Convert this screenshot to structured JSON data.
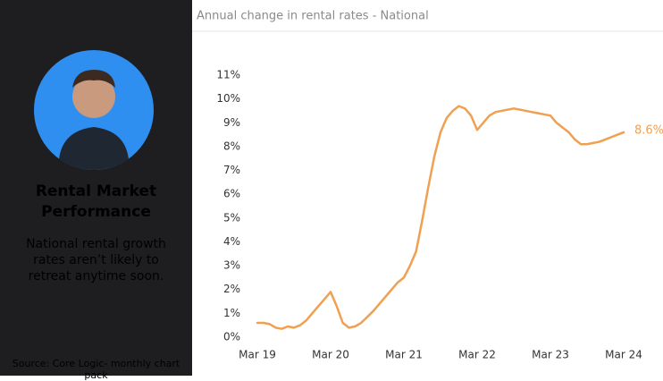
{
  "panel": {
    "heading": "Rental Market Performance",
    "text": "National rental growth rates aren’t likely to retreat anytime soon.",
    "source": "Source: Core Logic- monthly chart pack"
  },
  "chart_data": {
    "type": "line",
    "title": "Annual change in rental rates - National",
    "categories": [
      "Mar 19",
      null,
      null,
      null,
      null,
      null,
      null,
      null,
      null,
      null,
      null,
      null,
      "Mar 20",
      null,
      null,
      null,
      null,
      null,
      null,
      null,
      null,
      null,
      null,
      null,
      "Mar 21",
      null,
      null,
      null,
      null,
      null,
      null,
      null,
      null,
      null,
      null,
      null,
      "Mar 22",
      null,
      null,
      null,
      null,
      null,
      null,
      null,
      null,
      null,
      null,
      null,
      "Mar 23",
      null,
      null,
      null,
      null,
      null,
      null,
      null,
      null,
      null,
      null,
      null,
      "Mar 24"
    ],
    "series": [
      {
        "name": "National",
        "color": "#f0a050",
        "values": [
          0.6,
          0.6,
          0.55,
          0.4,
          0.35,
          0.45,
          0.4,
          0.5,
          0.7,
          1.0,
          1.3,
          1.6,
          1.9,
          1.3,
          0.6,
          0.4,
          0.45,
          0.6,
          0.85,
          1.1,
          1.4,
          1.7,
          2.0,
          2.3,
          2.5,
          3.0,
          3.6,
          4.9,
          6.3,
          7.6,
          8.6,
          9.2,
          9.5,
          9.7,
          9.6,
          9.3,
          8.7,
          9.0,
          9.3,
          9.45,
          9.5,
          9.55,
          9.6,
          9.55,
          9.5,
          9.45,
          9.4,
          9.35,
          9.3,
          9.0,
          8.8,
          8.6,
          8.3,
          8.1,
          8.1,
          8.15,
          8.2,
          8.3,
          8.4,
          8.5,
          8.6
        ],
        "value_labels": [
          null,
          null,
          null,
          null,
          null,
          null,
          null,
          null,
          null,
          null,
          null,
          null,
          null,
          null,
          null,
          null,
          null,
          null,
          null,
          null,
          null,
          null,
          null,
          null,
          null,
          null,
          null,
          null,
          null,
          null,
          null,
          null,
          null,
          null,
          null,
          null,
          null,
          null,
          null,
          null,
          null,
          null,
          null,
          null,
          null,
          null,
          null,
          null,
          null,
          null,
          null,
          null,
          null,
          null,
          null,
          null,
          null,
          null,
          null,
          null,
          "8.6%"
        ]
      }
    ],
    "ylim": [
      0,
      11
    ],
    "yticks": [
      {
        "value": 0,
        "label": "0%"
      },
      {
        "value": 1,
        "label": "1%"
      },
      {
        "value": 2,
        "label": "2%"
      },
      {
        "value": 3,
        "label": "3%"
      },
      {
        "value": 4,
        "label": "4%"
      },
      {
        "value": 5,
        "label": "5%"
      },
      {
        "value": 6,
        "label": "6%"
      },
      {
        "value": 7,
        "label": "7%"
      },
      {
        "value": 8,
        "label": "8%"
      },
      {
        "value": 9,
        "label": "9%"
      },
      {
        "value": 10,
        "label": "10%"
      },
      {
        "value": 11,
        "label": "11%"
      }
    ],
    "grid": false
  }
}
